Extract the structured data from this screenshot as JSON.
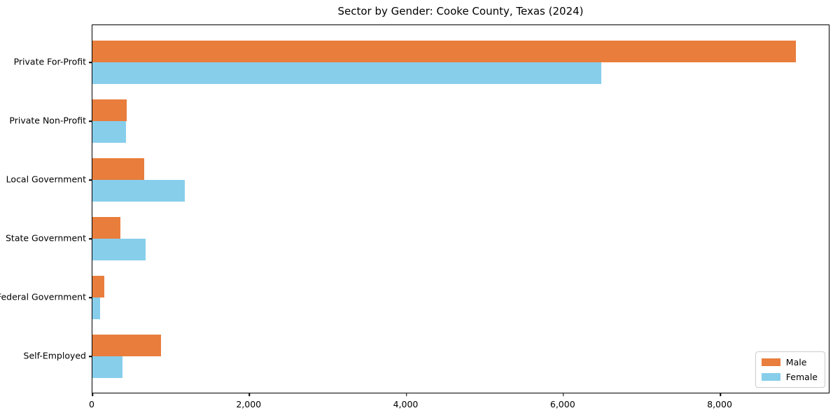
{
  "chart_data": {
    "type": "bar",
    "orientation": "horizontal",
    "title": "Sector by Gender: Cooke County, Texas (2024)",
    "categories": [
      "Private For-Profit",
      "Private Non-Profit",
      "Local Government",
      "State Government",
      "Federal Government",
      "Self-Employed"
    ],
    "series": [
      {
        "name": "Male",
        "color": "#e87d3c",
        "values": [
          8960,
          435,
          660,
          360,
          150,
          875
        ]
      },
      {
        "name": "Female",
        "color": "#87ceeb",
        "values": [
          6485,
          430,
          1180,
          680,
          95,
          380
        ]
      }
    ],
    "xlabel": "",
    "ylabel": "",
    "xlim": [
      0,
      9400
    ],
    "xticks": [
      0,
      2000,
      4000,
      6000,
      8000
    ],
    "xtick_labels": [
      "0",
      "2,000",
      "4,000",
      "6,000",
      "8,000"
    ],
    "grid": false,
    "legend": {
      "position": "lower-right",
      "entries": [
        "Male",
        "Female"
      ]
    }
  }
}
